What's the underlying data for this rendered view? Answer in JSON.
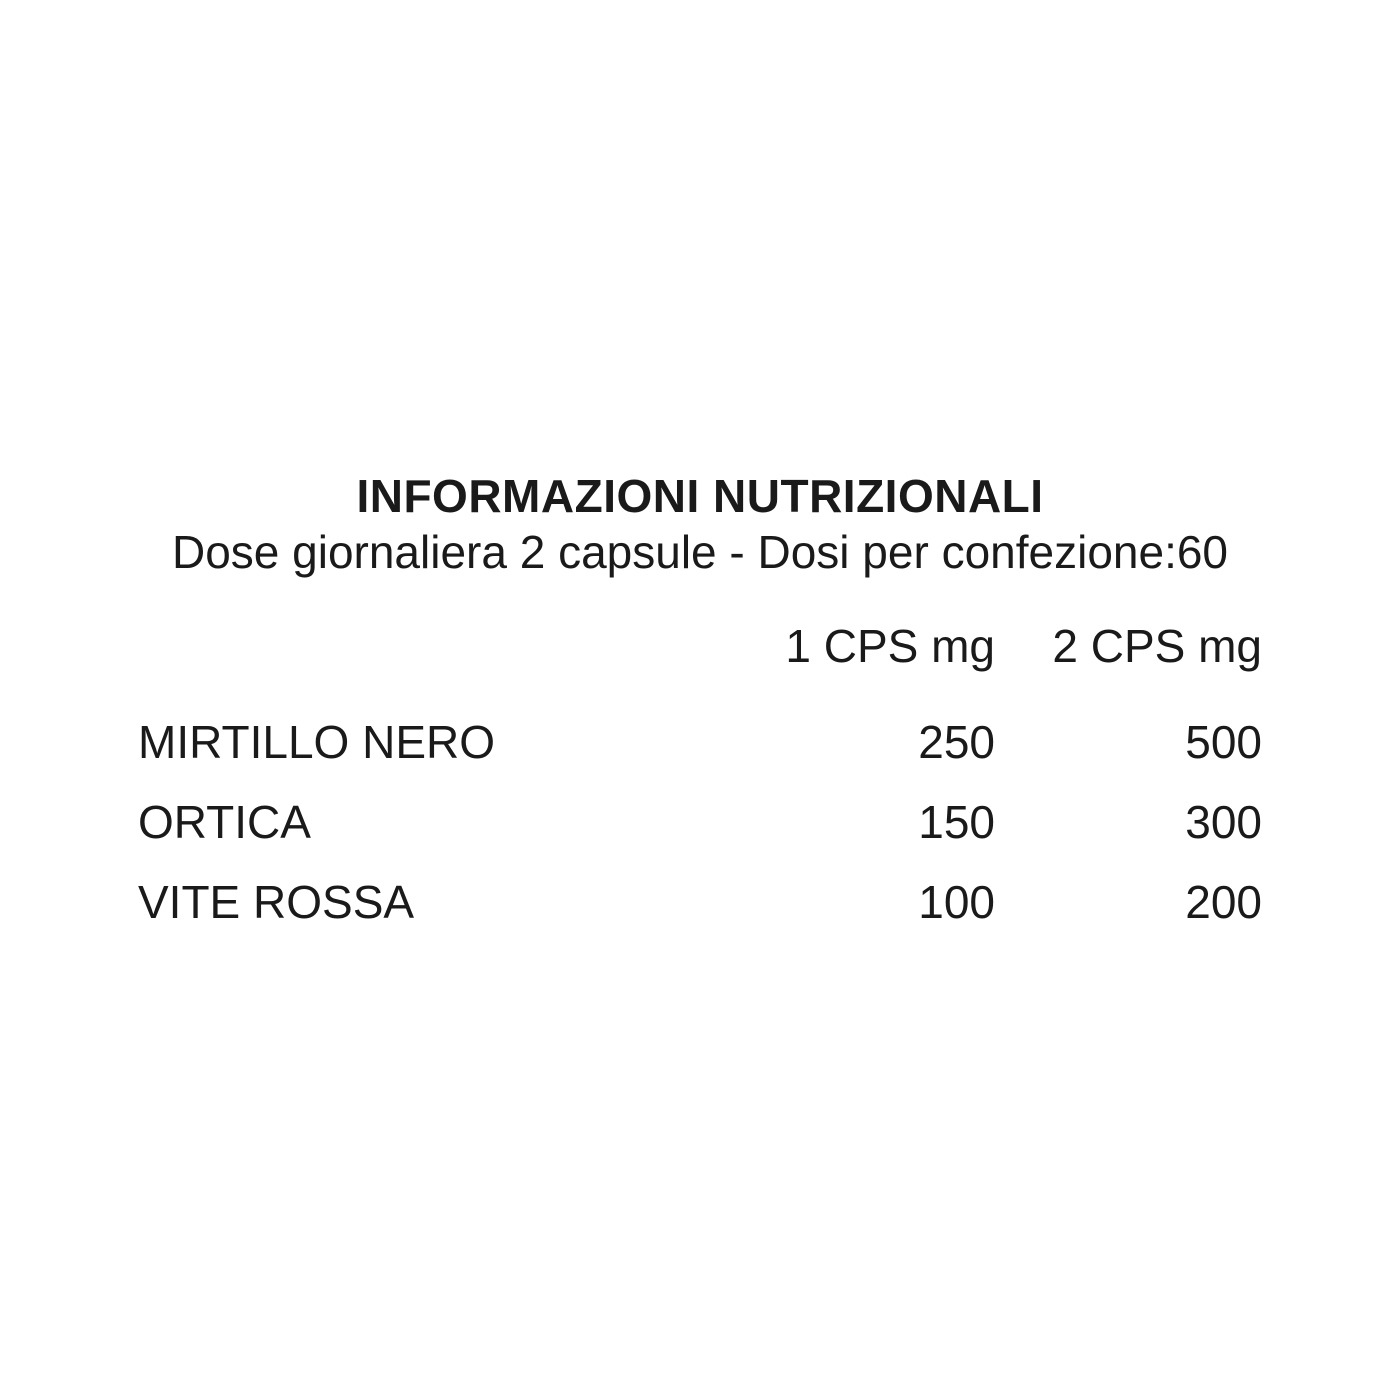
{
  "page": {
    "background_color": "#ffffff",
    "text_color": "#1a1a1a"
  },
  "label": {
    "title": "INFORMAZIONI NUTRIZIONALI",
    "subtitle": "Dose giornaliera 2 capsule - Dosi per confezione:60",
    "columns": [
      "1 CPS mg",
      "2 CPS mg"
    ],
    "rows": [
      {
        "name": "MIRTILLO NERO",
        "cps1": "250",
        "cps2": "500"
      },
      {
        "name": "ORTICA",
        "cps1": "150",
        "cps2": "300"
      },
      {
        "name": "VITE ROSSA",
        "cps1": "100",
        "cps2": "200"
      }
    ]
  }
}
